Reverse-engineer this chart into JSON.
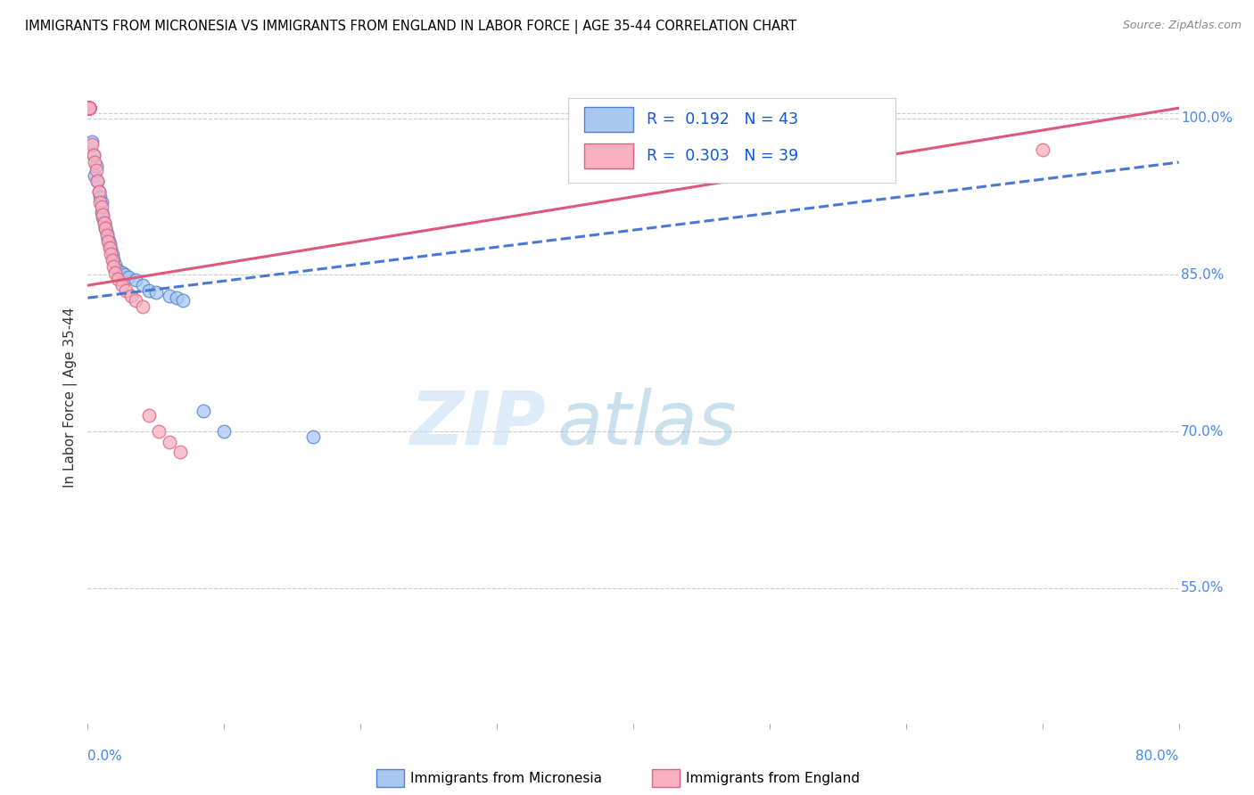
{
  "title": "IMMIGRANTS FROM MICRONESIA VS IMMIGRANTS FROM ENGLAND IN LABOR FORCE | AGE 35-44 CORRELATION CHART",
  "source": "Source: ZipAtlas.com",
  "ylabel": "In Labor Force | Age 35-44",
  "xmin": 0.0,
  "xmax": 0.8,
  "ymin": 0.42,
  "ymax": 1.045,
  "ytick_vals": [
    0.55,
    0.7,
    0.85,
    1.0
  ],
  "ytick_labels": [
    "55.0%",
    "70.0%",
    "85.0%",
    "100.0%"
  ],
  "xtick_vals": [
    0.0,
    0.1,
    0.2,
    0.3,
    0.4,
    0.5,
    0.6,
    0.7,
    0.8
  ],
  "xtick_labels": [
    "0.0%",
    "",
    "",
    "",
    "",
    "",
    "",
    "",
    "80.0%"
  ],
  "blue_R": 0.192,
  "blue_N": 43,
  "pink_R": 0.303,
  "pink_N": 39,
  "blue_fill": "#a8c8f0",
  "pink_fill": "#f8b0c0",
  "blue_edge": "#5080d0",
  "pink_edge": "#e06080",
  "blue_line": "#4878d0",
  "pink_line": "#e05878",
  "watermark_zip": "ZIP",
  "watermark_atlas": "atlas",
  "legend_label_blue": "Immigrants from Micronesia",
  "legend_label_pink": "Immigrants from England",
  "blue_trend": [
    0.0,
    0.828,
    0.8,
    0.958
  ],
  "pink_trend": [
    0.0,
    0.84,
    0.8,
    1.01
  ],
  "blue_x": [
    0.001,
    0.001,
    0.001,
    0.001,
    0.001,
    0.001,
    0.001,
    0.001,
    0.001,
    0.001,
    0.003,
    0.004,
    0.005,
    0.006,
    0.007,
    0.008,
    0.009,
    0.01,
    0.01,
    0.011,
    0.012,
    0.013,
    0.014,
    0.015,
    0.016,
    0.017,
    0.018,
    0.019,
    0.02,
    0.022,
    0.025,
    0.027,
    0.03,
    0.035,
    0.04,
    0.045,
    0.05,
    0.06,
    0.065,
    0.07,
    0.085,
    0.1,
    0.165
  ],
  "blue_y": [
    1.01,
    1.01,
    1.01,
    1.01,
    1.01,
    1.01,
    1.01,
    1.01,
    1.01,
    1.01,
    0.978,
    0.965,
    0.945,
    0.955,
    0.94,
    0.93,
    0.925,
    0.92,
    0.91,
    0.905,
    0.9,
    0.895,
    0.89,
    0.885,
    0.88,
    0.875,
    0.87,
    0.865,
    0.86,
    0.855,
    0.852,
    0.85,
    0.848,
    0.845,
    0.84,
    0.835,
    0.833,
    0.83,
    0.828,
    0.826,
    0.72,
    0.7,
    0.695
  ],
  "pink_x": [
    0.001,
    0.001,
    0.001,
    0.001,
    0.001,
    0.001,
    0.001,
    0.001,
    0.001,
    0.001,
    0.003,
    0.004,
    0.005,
    0.006,
    0.007,
    0.008,
    0.009,
    0.01,
    0.011,
    0.012,
    0.013,
    0.014,
    0.015,
    0.016,
    0.017,
    0.018,
    0.019,
    0.02,
    0.022,
    0.025,
    0.028,
    0.032,
    0.035,
    0.04,
    0.045,
    0.052,
    0.06,
    0.068,
    0.7
  ],
  "pink_y": [
    1.01,
    1.01,
    1.01,
    1.01,
    1.01,
    1.01,
    1.01,
    1.01,
    1.01,
    1.01,
    0.975,
    0.965,
    0.958,
    0.95,
    0.94,
    0.93,
    0.92,
    0.915,
    0.908,
    0.9,
    0.895,
    0.888,
    0.882,
    0.876,
    0.87,
    0.864,
    0.858,
    0.852,
    0.846,
    0.84,
    0.835,
    0.83,
    0.826,
    0.82,
    0.715,
    0.7,
    0.69,
    0.68,
    0.97
  ]
}
